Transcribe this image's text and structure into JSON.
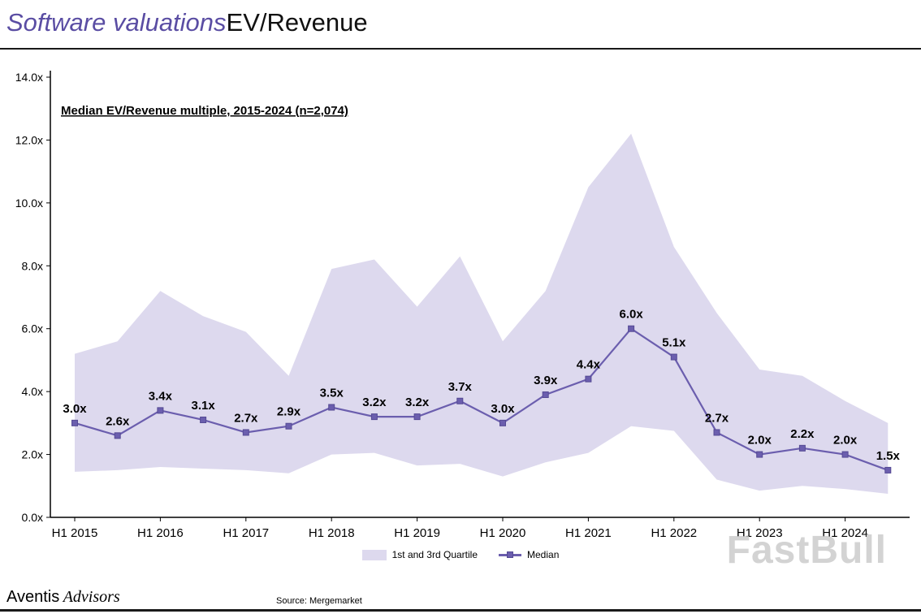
{
  "header": {
    "title_italic": "Software valuations",
    "title_regular": "EV/Revenue"
  },
  "chart_data": {
    "type": "line",
    "title": "Median EV/Revenue multiple, 2015-2024 (n=2,074)",
    "ylim": [
      0,
      14
    ],
    "y_tick_labels": [
      "0.0x",
      "2.0x",
      "4.0x",
      "6.0x",
      "8.0x",
      "10.0x",
      "12.0x",
      "14.0x"
    ],
    "x_tick_labels": [
      "H1 2015",
      "H1 2016",
      "H1 2017",
      "H1 2018",
      "H1 2019",
      "H1 2020",
      "H1 2021",
      "H1 2022",
      "H1 2023",
      "H1 2024"
    ],
    "categories": [
      "H1 2015",
      "H2 2015",
      "H1 2016",
      "H2 2016",
      "H1 2017",
      "H2 2017",
      "H1 2018",
      "H2 2018",
      "H1 2019",
      "H2 2019",
      "H1 2020",
      "H2 2020",
      "H1 2021",
      "H2 2021",
      "H1 2022",
      "H2 2022",
      "H1 2023",
      "H2 2023",
      "H1 2024",
      "H2 2024"
    ],
    "series_median": {
      "name": "Median",
      "values": [
        3.0,
        2.6,
        3.4,
        3.1,
        2.7,
        2.9,
        3.5,
        3.2,
        3.2,
        3.7,
        3.0,
        3.9,
        4.4,
        6.0,
        5.1,
        2.7,
        2.0,
        2.2,
        2.0,
        1.5
      ],
      "labels": [
        "3.0x",
        "2.6x",
        "3.4x",
        "3.1x",
        "2.7x",
        "2.9x",
        "3.5x",
        "3.2x",
        "3.2x",
        "3.7x",
        "3.0x",
        "3.9x",
        "4.4x",
        "6.0x",
        "5.1x",
        "2.7x",
        "2.0x",
        "2.2x",
        "2.0x",
        "1.5x"
      ]
    },
    "band": {
      "name": "1st and 3rd Quartile",
      "upper": [
        5.2,
        5.6,
        7.2,
        6.4,
        5.9,
        4.5,
        7.9,
        8.2,
        6.7,
        8.3,
        5.6,
        7.2,
        10.5,
        12.2,
        8.6,
        6.5,
        4.7,
        4.5,
        3.7,
        3.0
      ],
      "lower": [
        1.45,
        1.5,
        1.6,
        1.55,
        1.5,
        1.4,
        2.0,
        2.05,
        1.65,
        1.7,
        1.3,
        1.75,
        2.05,
        2.9,
        2.75,
        1.2,
        0.85,
        1.0,
        0.9,
        0.75
      ]
    },
    "colors": {
      "median": "#6b5eae",
      "median_dark": "#554a94",
      "band": "#ddd9ee",
      "title_accent": "#5a4da3"
    },
    "legend_position": "bottom"
  },
  "legend": {
    "quartile_label": "1st and 3rd Quartile",
    "median_label": "Median"
  },
  "footer": {
    "brand_sans": "Aventis",
    "brand_serif": "Advisors",
    "source": "Source: Mergemarket"
  },
  "watermark": {
    "text": "FastBull"
  }
}
